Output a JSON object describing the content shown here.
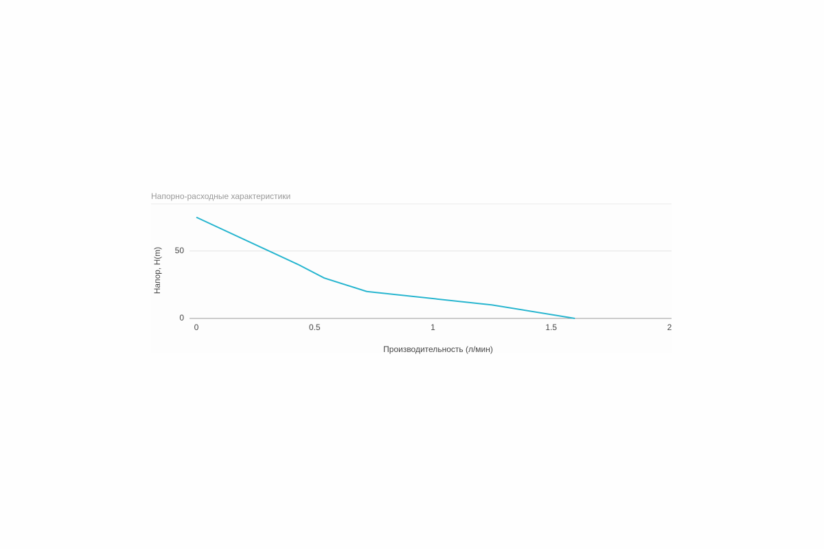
{
  "chart_data": {
    "type": "line",
    "title": "Напорно-расходные характеристики",
    "x_label": "Производительность (л/мин)",
    "y_label": "Напор, H(m)",
    "x": [
      0,
      0.43,
      0.54,
      0.72,
      1.25,
      1.6
    ],
    "series": [
      {
        "name": "Напор, H(m)",
        "color": "#26b5cf",
        "values": [
          75,
          40,
          30,
          20,
          10,
          0
        ]
      }
    ],
    "xlim": [
      0,
      2
    ],
    "xticks": [
      0,
      0.5,
      1,
      1.5,
      2
    ],
    "ylim": [
      0,
      85
    ],
    "yticks": [
      0,
      50
    ],
    "grid": true
  }
}
